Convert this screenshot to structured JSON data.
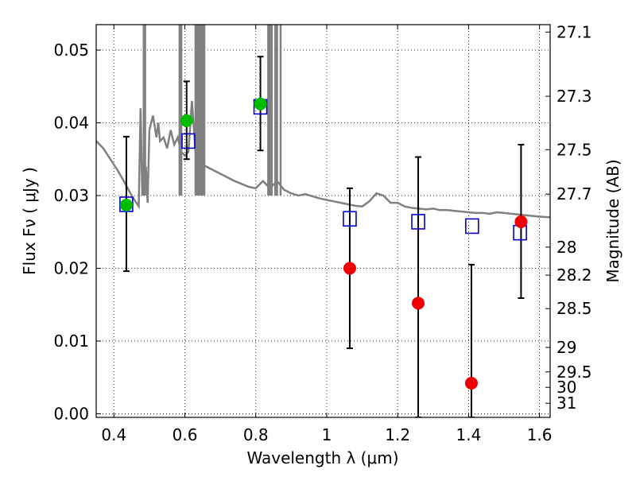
{
  "chart_data": {
    "type": "scatter",
    "title": "",
    "xlabel": "Wavelength  λ (μm)",
    "ylabel": "Flux  Fν  ( μJy )",
    "ylabel_right": "Magnitude (AB)",
    "xlim": [
      0.35,
      1.63
    ],
    "ylim": [
      -0.0005,
      0.0535
    ],
    "grid": true,
    "x_ticks": [
      0.4,
      0.6,
      0.8,
      1.0,
      1.2,
      1.4,
      1.6
    ],
    "x_tick_labels": [
      "0.4",
      "0.6",
      "0.8",
      "1",
      "1.2",
      "1.4",
      "1.6"
    ],
    "y_ticks": [
      0.0,
      0.01,
      0.02,
      0.03,
      0.04,
      0.05
    ],
    "y_tick_labels": [
      "0.00",
      "0.01",
      "0.02",
      "0.03",
      "0.04",
      "0.05"
    ],
    "right_ticks": [
      {
        "label": "27.1",
        "mag": 27.1
      },
      {
        "label": "27.3",
        "mag": 27.3
      },
      {
        "label": "27.5",
        "mag": 27.5
      },
      {
        "label": "27.7",
        "mag": 27.7
      },
      {
        "label": "28",
        "mag": 28.0
      },
      {
        "label": "28.2",
        "mag": 28.2
      },
      {
        "label": "28.5",
        "mag": 28.5
      },
      {
        "label": "29",
        "mag": 29.0
      },
      {
        "label": "29.5",
        "mag": 29.5
      },
      {
        "label": "30",
        "mag": 30.0
      },
      {
        "label": "31",
        "mag": 31.0
      }
    ],
    "series": [
      {
        "kind": "line",
        "color": "#808080",
        "x": [
          0.35,
          0.37,
          0.39,
          0.41,
          0.43,
          0.45,
          0.47,
          0.475,
          0.48,
          0.49,
          0.495,
          0.5,
          0.51,
          0.52,
          0.525,
          0.53,
          0.54,
          0.55,
          0.56,
          0.57,
          0.58,
          0.59,
          0.6,
          0.61,
          0.62,
          0.63,
          0.64,
          0.66,
          0.68,
          0.7,
          0.72,
          0.74,
          0.76,
          0.78,
          0.8,
          0.82,
          0.84,
          0.86,
          0.88,
          0.9,
          0.92,
          0.94,
          0.96,
          0.98,
          1.0,
          1.02,
          1.04,
          1.06,
          1.08,
          1.1,
          1.12,
          1.14,
          1.16,
          1.18,
          1.2,
          1.22,
          1.24,
          1.26,
          1.28,
          1.3,
          1.32,
          1.34,
          1.36,
          1.38,
          1.4,
          1.42,
          1.44,
          1.46,
          1.48,
          1.5,
          1.52,
          1.54,
          1.56,
          1.58,
          1.6,
          1.63
        ],
        "y": [
          0.0375,
          0.0365,
          0.035,
          0.0335,
          0.0318,
          0.03,
          0.0285,
          0.042,
          0.03,
          0.034,
          0.029,
          0.039,
          0.041,
          0.038,
          0.04,
          0.0375,
          0.038,
          0.0365,
          0.039,
          0.037,
          0.038,
          0.036,
          0.0355,
          0.036,
          0.043,
          0.036,
          0.0345,
          0.034,
          0.0335,
          0.033,
          0.0325,
          0.032,
          0.0316,
          0.0312,
          0.031,
          0.032,
          0.031,
          0.032,
          0.0308,
          0.0303,
          0.03,
          0.0302,
          0.0299,
          0.0296,
          0.0294,
          0.0292,
          0.029,
          0.0288,
          0.0286,
          0.0285,
          0.0292,
          0.0303,
          0.03,
          0.029,
          0.029,
          0.0285,
          0.0283,
          0.0282,
          0.0281,
          0.0282,
          0.028,
          0.028,
          0.0279,
          0.0278,
          0.0277,
          0.0276,
          0.0276,
          0.0275,
          0.0277,
          0.0276,
          0.0275,
          0.0274,
          0.0273,
          0.0272,
          0.0271,
          0.027
        ]
      },
      {
        "kind": "spikes",
        "color": "#808080",
        "x": [
          0.484,
          0.488,
          0.585,
          0.587,
          0.59,
          0.63,
          0.635,
          0.64,
          0.645,
          0.65,
          0.655,
          0.835,
          0.84,
          0.845,
          0.855,
          0.86,
          0.87
        ]
      },
      {
        "kind": "squares",
        "color": "#0000cc",
        "x": [
          0.435,
          0.61,
          0.813,
          1.065,
          1.258,
          1.41,
          1.545
        ],
        "y": [
          0.0288,
          0.0375,
          0.0422,
          0.0268,
          0.0264,
          0.0258,
          0.0249
        ]
      },
      {
        "kind": "points",
        "color": "#00bb00",
        "x": [
          0.435,
          0.605,
          0.813
        ],
        "y": [
          0.0287,
          0.0403,
          0.0426
        ]
      },
      {
        "kind": "points",
        "color": "#ee0000",
        "x": [
          1.065,
          1.258,
          1.408,
          1.548
        ],
        "y": [
          0.02,
          0.0152,
          0.0042,
          0.0264
        ]
      },
      {
        "kind": "errorbars",
        "color": "#000000",
        "x": [
          0.435,
          0.605,
          0.813,
          1.065,
          1.258,
          1.408,
          1.548
        ],
        "low": [
          0.0196,
          0.035,
          0.0362,
          0.009,
          -0.0005,
          -0.0005,
          0.0159
        ],
        "high": [
          0.0381,
          0.0457,
          0.0491,
          0.031,
          0.0353,
          0.0205,
          0.037
        ]
      }
    ]
  }
}
